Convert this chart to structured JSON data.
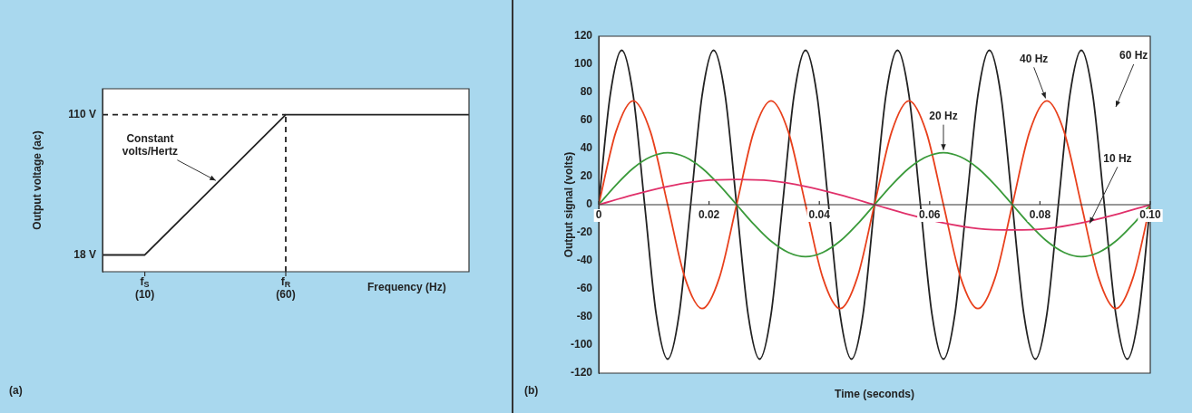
{
  "chart_data": [
    {
      "type": "line",
      "xlabel": "Frequency (Hz)",
      "ylabel": "Output voltage (ac)",
      "xlim": [
        -5,
        125
      ],
      "ylim": [
        7,
        127
      ],
      "xticks": [
        {
          "value": 10,
          "label": "f$_{S}$\n(10)"
        },
        {
          "value": 60,
          "label": "f$_{R}$\n(60)"
        }
      ],
      "yticks": [
        {
          "value": 18,
          "label": "18 V"
        },
        {
          "value": 110,
          "label": "110 V"
        }
      ],
      "grid": false,
      "marker": "none",
      "series": [
        {
          "color": "#222222",
          "x": [
            -5,
            10,
            60,
            125
          ],
          "values": [
            18,
            18,
            110,
            110
          ]
        },
        {
          "color": "#222222",
          "line_style": "dashed",
          "x": [
            -5,
            60
          ],
          "values": [
            110,
            110
          ]
        },
        {
          "color": "#222222",
          "line_style": "dashed",
          "x": [
            60,
            60
          ],
          "values": [
            7,
            110
          ]
        }
      ],
      "annotations": [
        {
          "text": "Constant volts/Hertz",
          "x": 36,
          "y": 66
        },
        "(a)"
      ]
    },
    {
      "type": "line",
      "xlabel": "Time (seconds)",
      "ylabel": "Output signal (volts)",
      "xlim": [
        0,
        0.1
      ],
      "ylim": [
        -120,
        120
      ],
      "xticks": [
        0,
        0.02,
        0.04,
        0.06,
        0.08,
        {
          "value": 0.1,
          "label": "0.10"
        }
      ],
      "yticks": [
        -120,
        -100,
        -80,
        -60,
        -40,
        -20,
        0,
        20,
        40,
        60,
        80,
        100,
        120
      ],
      "grid": false,
      "marker": "none",
      "series": [
        {
          "color": "#e0306a",
          "x": [
            0,
            0.00625,
            0.0125,
            0.01875,
            0.025,
            0.03125,
            0.0375,
            0.04375,
            0.05,
            0.05625,
            0.0625,
            0.06875,
            0.075,
            0.08125,
            0.0875,
            0.09375,
            0.1
          ],
          "values": [
            0,
            7,
            13,
            17,
            18,
            17,
            13,
            7,
            0,
            -7,
            -13,
            -17,
            -18,
            -17,
            -13,
            -7,
            0
          ]
        },
        {
          "color": "#3a9a3a",
          "x": [
            0,
            0.003125,
            0.00625,
            0.009375,
            0.0125,
            0.015625,
            0.01875,
            0.021875,
            0.025,
            0.028125,
            0.03125,
            0.034375,
            0.0375,
            0.040625,
            0.04375,
            0.046875,
            0.05,
            0.053125,
            0.05625,
            0.059375,
            0.0625,
            0.065625,
            0.06875,
            0.071875,
            0.075,
            0.078125,
            0.08125,
            0.084375,
            0.0875,
            0.090625,
            0.09375,
            0.096875,
            0.1
          ],
          "values": [
            0,
            14,
            26,
            34,
            37,
            34,
            26,
            14,
            0,
            -14,
            -26,
            -34,
            -37,
            -34,
            -26,
            -14,
            0,
            14,
            26,
            34,
            37,
            34,
            26,
            14,
            0,
            -14,
            -26,
            -34,
            -37,
            -34,
            -26,
            -14,
            0
          ]
        },
        {
          "color": "#e8401c",
          "x": [
            0,
            0.003125,
            0.00625,
            0.009375,
            0.0125,
            0.015625,
            0.01875,
            0.021875,
            0.025,
            0.028125,
            0.03125,
            0.034375,
            0.0375,
            0.040625,
            0.04375,
            0.046875,
            0.05,
            0.053125,
            0.05625,
            0.059375,
            0.0625,
            0.065625,
            0.06875,
            0.071875,
            0.075,
            0.078125,
            0.08125,
            0.084375,
            0.0875,
            0.090625,
            0.09375,
            0.096875,
            0.1
          ],
          "values": [
            0,
            52,
            74,
            52,
            0,
            -52,
            -74,
            -52,
            0,
            52,
            74,
            52,
            0,
            -52,
            -74,
            -52,
            0,
            52,
            74,
            52,
            0,
            -52,
            -74,
            -52,
            0,
            52,
            74,
            52,
            0,
            -52,
            -74,
            -52,
            0
          ]
        },
        {
          "color": "#222222",
          "x": [
            0,
            0.00208,
            0.00417,
            0.00625,
            0.00833,
            0.01042,
            0.0125,
            0.01458,
            0.01667,
            0.01875,
            0.02083,
            0.02292,
            0.025,
            0.02708,
            0.02917,
            0.03125,
            0.03333,
            0.03542,
            0.0375,
            0.03958,
            0.04167,
            0.04375,
            0.04583,
            0.04792,
            0.05,
            0.05208,
            0.05417,
            0.05625,
            0.05833,
            0.06042,
            0.0625,
            0.06458,
            0.06667,
            0.06875,
            0.07083,
            0.07292,
            0.075,
            0.07708,
            0.07917,
            0.08125,
            0.08333,
            0.08542,
            0.0875,
            0.08958,
            0.09167,
            0.09375,
            0.09583,
            0.09792,
            0.1
          ],
          "values": [
            0,
            78,
            110,
            78,
            0,
            -78,
            -110,
            -78,
            0,
            78,
            110,
            78,
            0,
            -78,
            -110,
            -78,
            0,
            78,
            110,
            78,
            0,
            -78,
            -110,
            -78,
            0,
            78,
            110,
            78,
            0,
            -78,
            -110,
            -78,
            0,
            78,
            110,
            78,
            0,
            -78,
            -110,
            -78,
            0,
            78,
            110,
            78,
            0,
            -78,
            -110,
            -78,
            0
          ]
        }
      ],
      "annotations": [
        {
          "text": "10 Hz",
          "x": 0.0888,
          "y": -15
        },
        {
          "text": "20 Hz",
          "x": 0.0625,
          "y": 37
        },
        {
          "text": "40 Hz",
          "x": 0.0812,
          "y": 74
        },
        "60 Hz",
        "(b)"
      ]
    }
  ]
}
